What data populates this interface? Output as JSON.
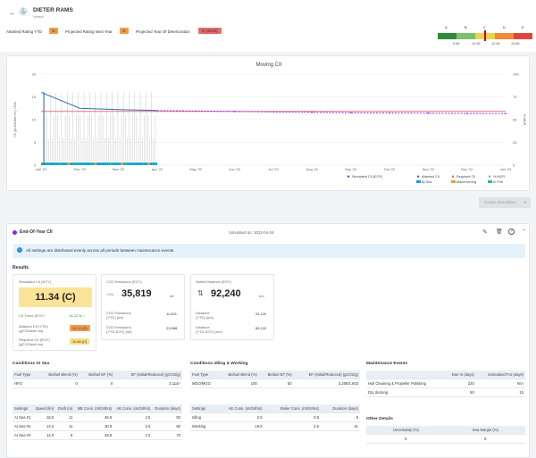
{
  "vessel": {
    "name": "DIETER RAMS",
    "type": "Vessel"
  },
  "header": {
    "attained_label": "Attained Rating YTD",
    "attained_value": "D",
    "projected_label": "Projected Rating Next Year",
    "projected_value": "D",
    "deterioration_label": "Projected Year Of Deterioration",
    "deterioration_value": "E (2025)"
  },
  "rating_scale": {
    "letters": [
      "A",
      "B",
      "C",
      "D",
      "E"
    ],
    "ticks": [
      "9.68",
      "10.96",
      "12.48",
      "13.86"
    ],
    "colors": [
      "#2e8b3a",
      "#7cc16a",
      "#f1d24a",
      "#f08a3c",
      "#e0453b"
    ]
  },
  "chart_data": {
    "type": "line",
    "title": "Moving CII",
    "ylabel": "CII (gCO2/dwt·nm) ×100",
    "y2label": "% MCR",
    "ylim": [
      0,
      20
    ],
    "y2lim": [
      0,
      100
    ],
    "yticks": [
      "20",
      "15",
      "10",
      "5",
      "0"
    ],
    "y2ticks": [
      "100",
      "75",
      "50",
      "25",
      "0"
    ],
    "x": [
      "Jan '22",
      "Feb '22",
      "Mar '22",
      "Apr '22",
      "May '22",
      "Jun '22",
      "Jul '22",
      "Aug '22",
      "Sep '22",
      "Oct '22",
      "Nov '22",
      "Dec '22",
      "Jan '23"
    ],
    "series": [
      {
        "name": "Attained CII",
        "values": [
          16,
          12.5,
          12.2,
          12.0,
          11.9,
          11.8,
          11.7,
          11.6,
          11.5,
          11.45,
          11.4,
          11.35,
          11.34
        ]
      },
      {
        "name": "Required CII",
        "values": [
          11.8,
          11.8,
          11.8,
          11.8,
          11.8,
          11.8,
          11.8,
          11.8,
          11.8,
          11.8,
          11.8,
          11.8,
          11.8
        ]
      },
      {
        "name": "Simulated CII (EOY)",
        "values": [
          null,
          null,
          null,
          12.0,
          11.9,
          11.8,
          11.7,
          11.6,
          11.5,
          11.45,
          11.4,
          11.35,
          11.34
        ]
      }
    ],
    "legend": [
      "Simulated CII (EOY)",
      "Attained CII",
      "Required CII",
      "% MCR",
      "At Sea",
      "Maneuvering",
      "In Port"
    ],
    "legend_colors": [
      "#8a2be2",
      "#2a6fb5",
      "#e05a6a",
      "#999999",
      "#1aa0dc",
      "#e0a030",
      "#26b99a"
    ]
  },
  "toolbar": {
    "create_simulation": "Create simulation"
  },
  "eoy": {
    "title": "End-Of-Year CII",
    "simulated_on": "Simulated on: 2022-04-04",
    "info": "All settings are distributed evenly across all periods between maintenance events."
  },
  "results": {
    "label": "Results",
    "sim_cii": {
      "title": "Simulated CII (EOY)",
      "value": "11.34 (C)",
      "trend_label": "CII Trend (EOY)",
      "trend_value": "14.22 % ↓",
      "attained_label": "Attained CII (YTD)\n(gCO2/dwt·nm)",
      "attained_value": "12.22 (D)",
      "required_label": "Required CII (EOY)\n(gCO2/dwt·nm)",
      "required_value": "11.66 (C)"
    },
    "co2": {
      "title": "CO2 Emissions (EOY)",
      "value": "35,819",
      "unit": "mt",
      "r1_label": "CO2 Emissions\n(YTD) (mt)",
      "r1_value": "11,831",
      "r2_label": "CO2 Emissions\n(YTD-EOY) (mt)",
      "r2_value": "23,988"
    },
    "dist": {
      "title": "Sailed Distance (EOY)",
      "value": "92,240",
      "unit": "nm",
      "r1_label": "Distance\n(YTD) (nm)",
      "r1_value": "26,120",
      "r2_label": "Distance\n(YTD-EOY) (nm)",
      "r2_value": "66,120"
    }
  },
  "at_sea": {
    "title": "Conditions At Sea",
    "head": [
      "Fuel Type",
      "Biofuel Blend (%)",
      "Biofuel EF (%)",
      "EF (Initial/Reduced) (gCO2/g)"
    ],
    "row": [
      "HFO",
      "0",
      "0",
      "3.114/-"
    ],
    "settings_head": [
      "Settings",
      "Speed (kn)",
      "Draft (m)",
      "ME Cons. (mt/24hrs)",
      "AE Cons. (mt/24hrs)",
      "Duration (days)"
    ],
    "rows": [
      [
        "At Sea #1",
        "16.0",
        "11",
        "45.5",
        "2.5",
        "50"
      ],
      [
        "At Sea #2",
        "14.0",
        "11",
        "30.9",
        "2.5",
        "80"
      ],
      [
        "At Sea #3",
        "14.0",
        "8",
        "28.8",
        "2.5",
        "70"
      ]
    ]
  },
  "idling": {
    "title": "Conditions Idling & Working",
    "head": [
      "Fuel Type",
      "Biofuel Blend (%)",
      "Biofuel EF (%)",
      "EF (Initial/Reduced) (gCO2/g)"
    ],
    "row": [
      "MDO/MGO",
      "100",
      "50",
      "3.206/1.603"
    ],
    "settings_head": [
      "Settings",
      "AE Cons. (mt/24hrs)",
      "Boiler Cons. (mt/24hrs)",
      "Duration (days)"
    ],
    "rows": [
      [
        "Idling",
        "2.5",
        "0.5",
        "8"
      ],
      [
        "Working",
        "19.6",
        "2.5",
        "41"
      ]
    ]
  },
  "maintenance": {
    "title": "Maintenance Events",
    "head": [
      "",
      "Due In (days)",
      "Scheduled For (days)"
    ],
    "rows": [
      [
        "Hull Cleaning & Propeller Polishing",
        "220",
        "N/A"
      ],
      [
        "Dry docking",
        "50",
        "15"
      ]
    ]
  },
  "other": {
    "title": "Other Details",
    "head": [
      "Uncertainty (%)",
      "Sea Margin (%)"
    ],
    "row": [
      "5",
      "5"
    ]
  }
}
